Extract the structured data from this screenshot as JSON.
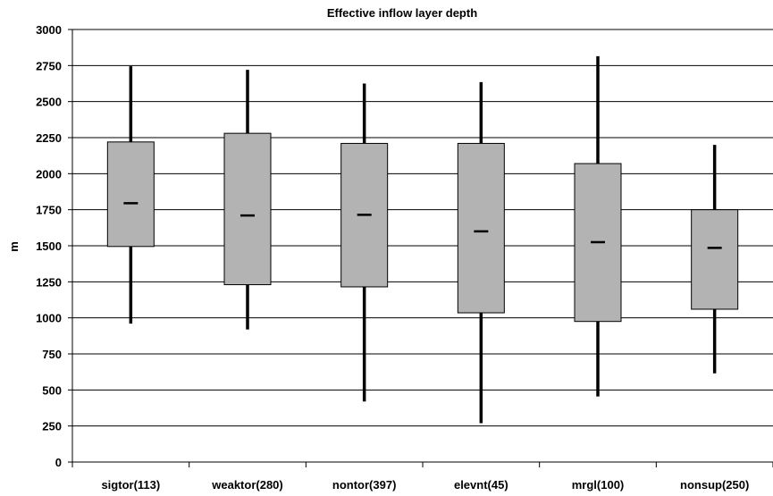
{
  "chart_data": {
    "type": "box",
    "title": "Effective inflow layer depth",
    "xlabel": "",
    "ylabel": "m",
    "ylim": [
      0,
      3000
    ],
    "yticks": [
      0,
      250,
      500,
      750,
      1000,
      1250,
      1500,
      1750,
      2000,
      2250,
      2500,
      2750,
      3000
    ],
    "grid": true,
    "categories": [
      "sigtor(113)",
      "weaktor(280)",
      "nontor(397)",
      "elevnt(45)",
      "mrgl(100)",
      "nonsup(250)"
    ],
    "boxes": [
      {
        "whisker_low": 960,
        "q1": 1495,
        "median": 1795,
        "q3": 2220,
        "whisker_high": 2745
      },
      {
        "whisker_low": 920,
        "q1": 1230,
        "median": 1710,
        "q3": 2280,
        "whisker_high": 2720
      },
      {
        "whisker_low": 420,
        "q1": 1215,
        "median": 1715,
        "q3": 2210,
        "whisker_high": 2625
      },
      {
        "whisker_low": 270,
        "q1": 1035,
        "median": 1600,
        "q3": 2210,
        "whisker_high": 2635
      },
      {
        "whisker_low": 455,
        "q1": 975,
        "median": 1525,
        "q3": 2070,
        "whisker_high": 2815
      },
      {
        "whisker_low": 615,
        "q1": 1060,
        "median": 1485,
        "q3": 1750,
        "whisker_high": 2200
      }
    ],
    "colors": {
      "box_fill": "#b3b3b3",
      "box_stroke": "#000000",
      "whisker": "#000000",
      "grid": "#000000"
    }
  }
}
